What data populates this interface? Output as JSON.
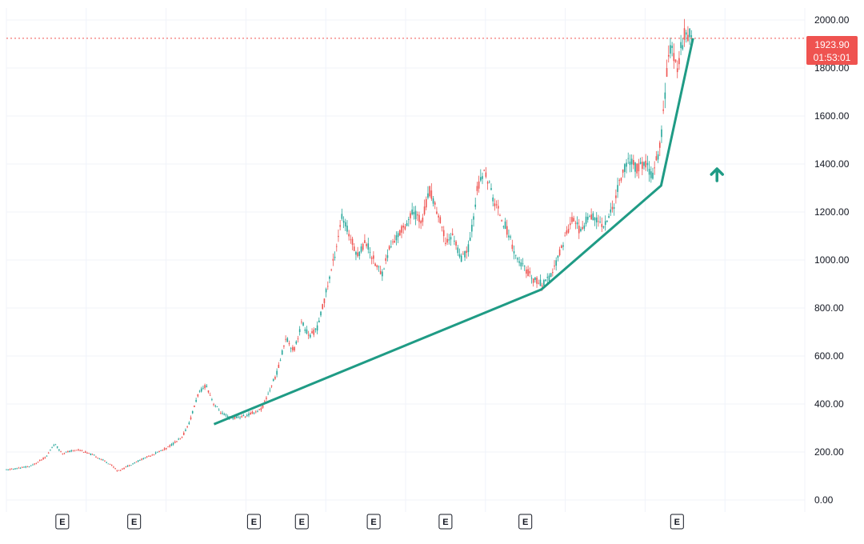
{
  "chart_data": {
    "type": "candlestick",
    "ylim": [
      -50,
      2050
    ],
    "y_ticks": [
      "0.00",
      "200.00",
      "400.00",
      "600.00",
      "800.00",
      "1000.00",
      "1200.00",
      "1400.00",
      "1600.00",
      "1800.00",
      "2000.00"
    ],
    "y_tick_values": [
      0,
      200,
      400,
      600,
      800,
      1000,
      1200,
      1400,
      1600,
      1800,
      2000
    ],
    "last_price": "1923.90",
    "countdown": "01:53:01",
    "last_price_value": 1923.9,
    "price_path": [
      [
        0,
        125
      ],
      [
        3,
        140
      ],
      [
        5,
        180
      ],
      [
        6,
        235
      ],
      [
        7,
        195
      ],
      [
        9,
        210
      ],
      [
        11,
        185
      ],
      [
        13,
        150
      ],
      [
        14,
        120
      ],
      [
        16,
        155
      ],
      [
        18,
        185
      ],
      [
        20,
        215
      ],
      [
        22,
        260
      ],
      [
        23,
        330
      ],
      [
        24,
        440
      ],
      [
        25,
        480
      ],
      [
        26,
        400
      ],
      [
        27,
        360
      ],
      [
        28,
        340
      ],
      [
        30,
        350
      ],
      [
        32,
        380
      ],
      [
        34,
        540
      ],
      [
        35,
        680
      ],
      [
        36,
        620
      ],
      [
        37,
        740
      ],
      [
        38,
        680
      ],
      [
        39,
        720
      ],
      [
        40,
        860
      ],
      [
        41,
        1000
      ],
      [
        42,
        1180
      ],
      [
        43,
        1100
      ],
      [
        44,
        1020
      ],
      [
        45,
        1080
      ],
      [
        46,
        1000
      ],
      [
        47,
        940
      ],
      [
        48,
        1050
      ],
      [
        49,
        1100
      ],
      [
        50,
        1150
      ],
      [
        51,
        1200
      ],
      [
        52,
        1160
      ],
      [
        53,
        1290
      ],
      [
        54,
        1200
      ],
      [
        55,
        1080
      ],
      [
        56,
        1100
      ],
      [
        57,
        1000
      ],
      [
        58,
        1060
      ],
      [
        59,
        1300
      ],
      [
        60,
        1370
      ],
      [
        61,
        1250
      ],
      [
        62,
        1180
      ],
      [
        63,
        1100
      ],
      [
        64,
        1000
      ],
      [
        65,
        960
      ],
      [
        66,
        920
      ],
      [
        67,
        900
      ],
      [
        68,
        920
      ],
      [
        69,
        1000
      ],
      [
        70,
        1100
      ],
      [
        71,
        1180
      ],
      [
        72,
        1110
      ],
      [
        73,
        1200
      ],
      [
        74,
        1160
      ],
      [
        75,
        1150
      ],
      [
        76,
        1220
      ],
      [
        77,
        1350
      ],
      [
        78,
        1420
      ],
      [
        79,
        1380
      ],
      [
        80,
        1400
      ],
      [
        81,
        1350
      ],
      [
        82,
        1500
      ],
      [
        83,
        1900
      ],
      [
        84,
        1800
      ],
      [
        85,
        1960
      ],
      [
        86,
        1923.9
      ]
    ],
    "trendline": [
      [
        26,
        316
      ],
      [
        67,
        877
      ],
      [
        82,
        1310
      ],
      [
        86,
        1924
      ]
    ],
    "earnings_marker": "E",
    "earnings_x": [
      7,
      16,
      31,
      37,
      46,
      55,
      65,
      84
    ],
    "colors": {
      "up": "#26a69a",
      "down": "#ef5350",
      "trend": "#1f9b85",
      "grid": "#f0f3fa",
      "price_line": "#ef5350"
    }
  }
}
